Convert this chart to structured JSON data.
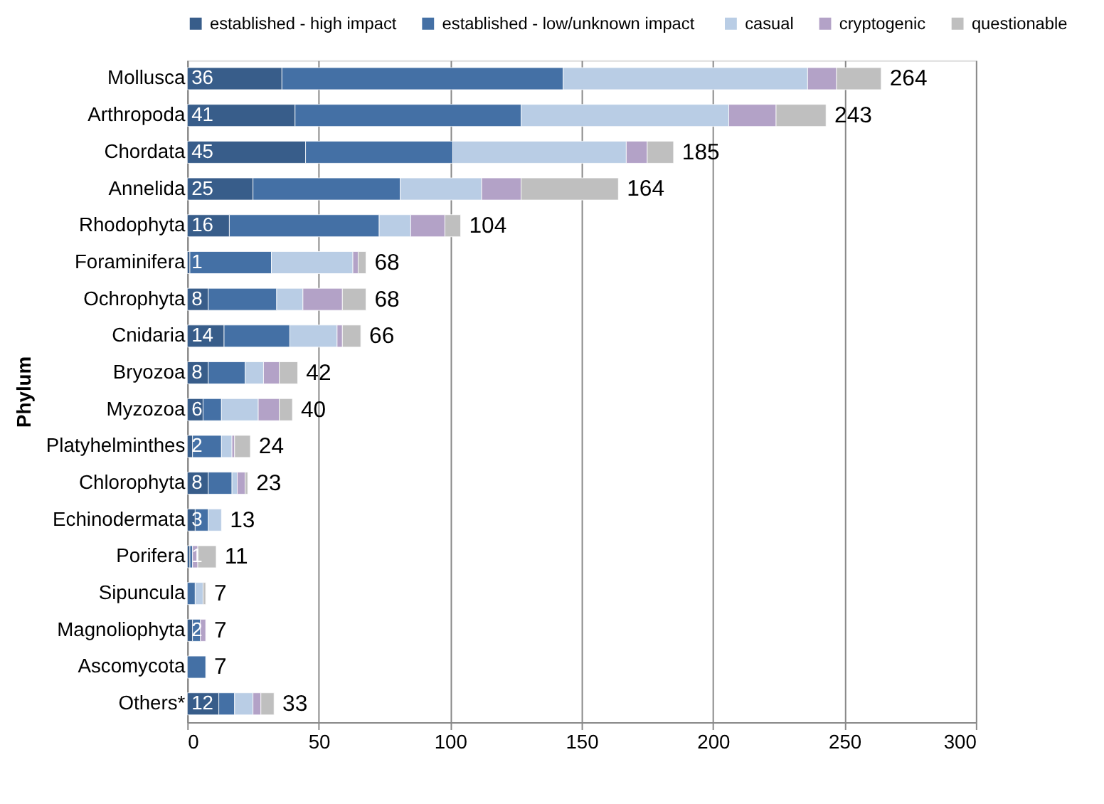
{
  "chart_data": {
    "type": "bar",
    "orientation": "horizontal",
    "stacked": true,
    "ylabel": "Phylum",
    "categories": [
      "Mollusca",
      "Arthropoda",
      "Chordata",
      "Annelida",
      "Rhodophyta",
      "Foraminifera",
      "Ochrophyta",
      "Cnidaria",
      "Bryozoa",
      "Myzozoa",
      "Platyhelminthes",
      "Chlorophyta",
      "Echinodermata",
      "Porifera",
      "Sipuncula",
      "Magnoliophyta",
      "Ascomycota",
      "Others*"
    ],
    "series": [
      {
        "name": "established - high impact",
        "color": "#385d8a",
        "values": [
          36,
          41,
          45,
          25,
          16,
          1,
          8,
          14,
          8,
          6,
          2,
          8,
          3,
          1,
          null,
          2,
          null,
          12
        ],
        "value_labels": [
          "36",
          "41",
          "45",
          "25",
          "16",
          "1",
          "8",
          "14",
          "8",
          "6",
          "2",
          "8",
          "3",
          "1",
          null,
          "2",
          null,
          "12"
        ]
      },
      {
        "name": "established - low/unknown  impact",
        "color": "#4470a5",
        "values": [
          107,
          86,
          56,
          56,
          57,
          31,
          26,
          25,
          14,
          7,
          11,
          9,
          5,
          1,
          3,
          3,
          7,
          6
        ]
      },
      {
        "name": "casual",
        "color": "#b9cde5",
        "values": [
          93,
          79,
          66,
          31,
          12,
          31,
          10,
          18,
          7,
          14,
          4,
          2,
          5,
          null,
          3,
          null,
          null,
          7
        ]
      },
      {
        "name": "cryptogenic",
        "color": "#b3a2c7",
        "values": [
          11,
          18,
          8,
          15,
          13,
          2,
          15,
          2,
          6,
          8,
          1,
          3,
          null,
          2,
          null,
          2,
          null,
          3
        ]
      },
      {
        "name": "questionable",
        "color": "#bfbfbf",
        "values": [
          17,
          19,
          10,
          37,
          6,
          3,
          9,
          7,
          7,
          5,
          6,
          1,
          null,
          7,
          1,
          null,
          null,
          5
        ]
      }
    ],
    "totals": [
      "264",
      "243",
      "185",
      "164",
      "104",
      "68",
      "68",
      "66",
      "42",
      "40",
      "24",
      "23",
      "13",
      "11",
      "7",
      "7",
      "7",
      "33"
    ],
    "xlim": [
      0,
      300
    ],
    "xticks": [
      0,
      50,
      100,
      150,
      200,
      250,
      300
    ],
    "grid": "x",
    "legend": "top"
  }
}
